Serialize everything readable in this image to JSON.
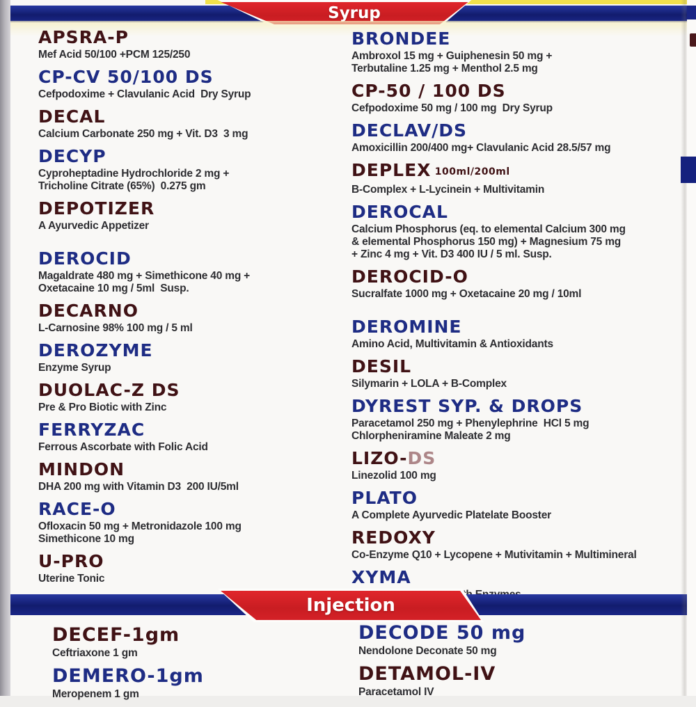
{
  "colors": {
    "navy_name": "#1e2c84",
    "maroon_name": "#401215",
    "banner_blue": "#121c6e",
    "banner_red": "#d42127",
    "accent_yellow": "#f2e14c",
    "description_text": "#2d2d31"
  },
  "sections": [
    {
      "title": "Syrup",
      "columns": [
        {
          "items": [
            {
              "name": "APSRA-P",
              "color": "maroon",
              "desc": "Mef Acid 50/100 +PCM 125/250"
            },
            {
              "name": "CP-CV 50/100 DS",
              "color": "navy",
              "desc": "Cefpodoxime + Clavulanic Acid  Dry Syrup"
            },
            {
              "name": "DECAL",
              "color": "maroon",
              "desc": "Calcium Carbonate 250 mg + Vit. D3  3 mg"
            },
            {
              "name": "DECYP",
              "color": "navy",
              "desc": "Cyproheptadine Hydrochloride 2 mg +\nTricholine Citrate (65%)  0.275 gm"
            },
            {
              "name": "DEPOTIZER",
              "color": "maroon",
              "desc": "A Ayurvedic Appetizer"
            },
            {
              "name": "DEROCID",
              "color": "navy",
              "gap_before": true,
              "desc": "Magaldrate 480 mg + Simethicone 40 mg +\nOxetacaine 10 mg / 5ml  Susp."
            },
            {
              "name": "DECARNO",
              "color": "maroon",
              "desc": "L-Carnosine 98% 100 mg / 5 ml"
            },
            {
              "name": "DEROZYME",
              "color": "navy",
              "desc": "Enzyme Syrup"
            },
            {
              "name": "DUOLAC-Z DS",
              "color": "maroon",
              "desc": "Pre & Pro Biotic with Zinc"
            },
            {
              "name": "FERRYZAC",
              "color": "navy",
              "desc": "Ferrous Ascorbate with Folic Acid"
            },
            {
              "name": "MINDON",
              "color": "maroon",
              "desc": "DHA 200 mg with Vitamin D3  200 IU/5ml"
            },
            {
              "name": "RACE-O",
              "color": "navy",
              "desc": "Ofloxacin 50 mg + Metronidazole 100 mg\nSimethicone 10 mg"
            },
            {
              "name": "U-PRO",
              "color": "maroon",
              "desc": "Uterine Tonic"
            }
          ]
        },
        {
          "items": [
            {
              "name": "BRONDEE",
              "color": "navy",
              "desc": "Ambroxol 15 mg + Guiphenesin 50 mg +\nTerbutaline 1.25 mg + Menthol 2.5 mg"
            },
            {
              "name": "CP-50 / 100 DS",
              "color": "maroon",
              "desc": "Cefpodoxime 50 mg / 100 mg  Dry Syrup"
            },
            {
              "name": "DECLAV/DS",
              "color": "navy",
              "desc": "Amoxicillin 200/400 mg+ Clavulanic Acid 28.5/57 mg"
            },
            {
              "name": "DEPLEX",
              "suffix": "100ml/200ml",
              "color": "maroon",
              "desc": "B-Complex + L-Lycinein + Multivitamin"
            },
            {
              "name": "DEROCAL",
              "color": "navy",
              "desc": "Calcium Phosphorus (eq. to elemental Calcium 300 mg\n& elemental Phosphorus 150 mg) + Magnesium 75 mg\n+ Zinc 4 mg + Vit. D3 400 IU / 5 ml. Susp."
            },
            {
              "name": "DEROCID-O",
              "color": "maroon",
              "desc": "Sucralfate 1000 mg + Oxetacaine 20 mg / 10ml"
            },
            {
              "name": "DEROMINE",
              "color": "navy",
              "gap_before": true,
              "desc": "Amino Acid, Multivitamin & Antioxidants"
            },
            {
              "name": "DESIL",
              "color": "maroon",
              "desc": "Silymarin + LOLA + B-Complex"
            },
            {
              "name": "DYREST SYP. & DROPS",
              "color": "navy",
              "desc": "Paracetamol 250 mg + Phenylephrine  HCl 5 mg\nChlorpheniramine Maleate 2 mg"
            },
            {
              "name": "LIZO-",
              "name_faded": "DS",
              "color": "maroon",
              "desc": "Linezolid 100 mg"
            },
            {
              "name": "PLATO",
              "color": "navy",
              "desc": "A Complete Ayurvedic Platelate Booster"
            },
            {
              "name": "REDOXY",
              "color": "maroon",
              "desc": "Co-Enzyme Q10 + Lycopene + Mutivitamin + Multimineral"
            },
            {
              "name": "XYMA",
              "color": "navy",
              "desc": "Bacillus Coagulans with Enzymes"
            }
          ]
        }
      ]
    },
    {
      "title": "Injection",
      "columns": [
        {
          "items": [
            {
              "name": "DECEF-1gm",
              "color": "maroon",
              "desc": "Ceftriaxone 1 gm"
            },
            {
              "name": "DEMERO-1gm",
              "color": "navy",
              "desc": "Meropenem 1 gm"
            }
          ]
        },
        {
          "items": [
            {
              "name": "DECODE 50 mg",
              "color": "navy",
              "desc": "Nendolone Deconate 50 mg"
            },
            {
              "name": "DETAMOL-IV",
              "color": "maroon",
              "desc": "Paracetamol IV"
            }
          ]
        }
      ]
    }
  ]
}
